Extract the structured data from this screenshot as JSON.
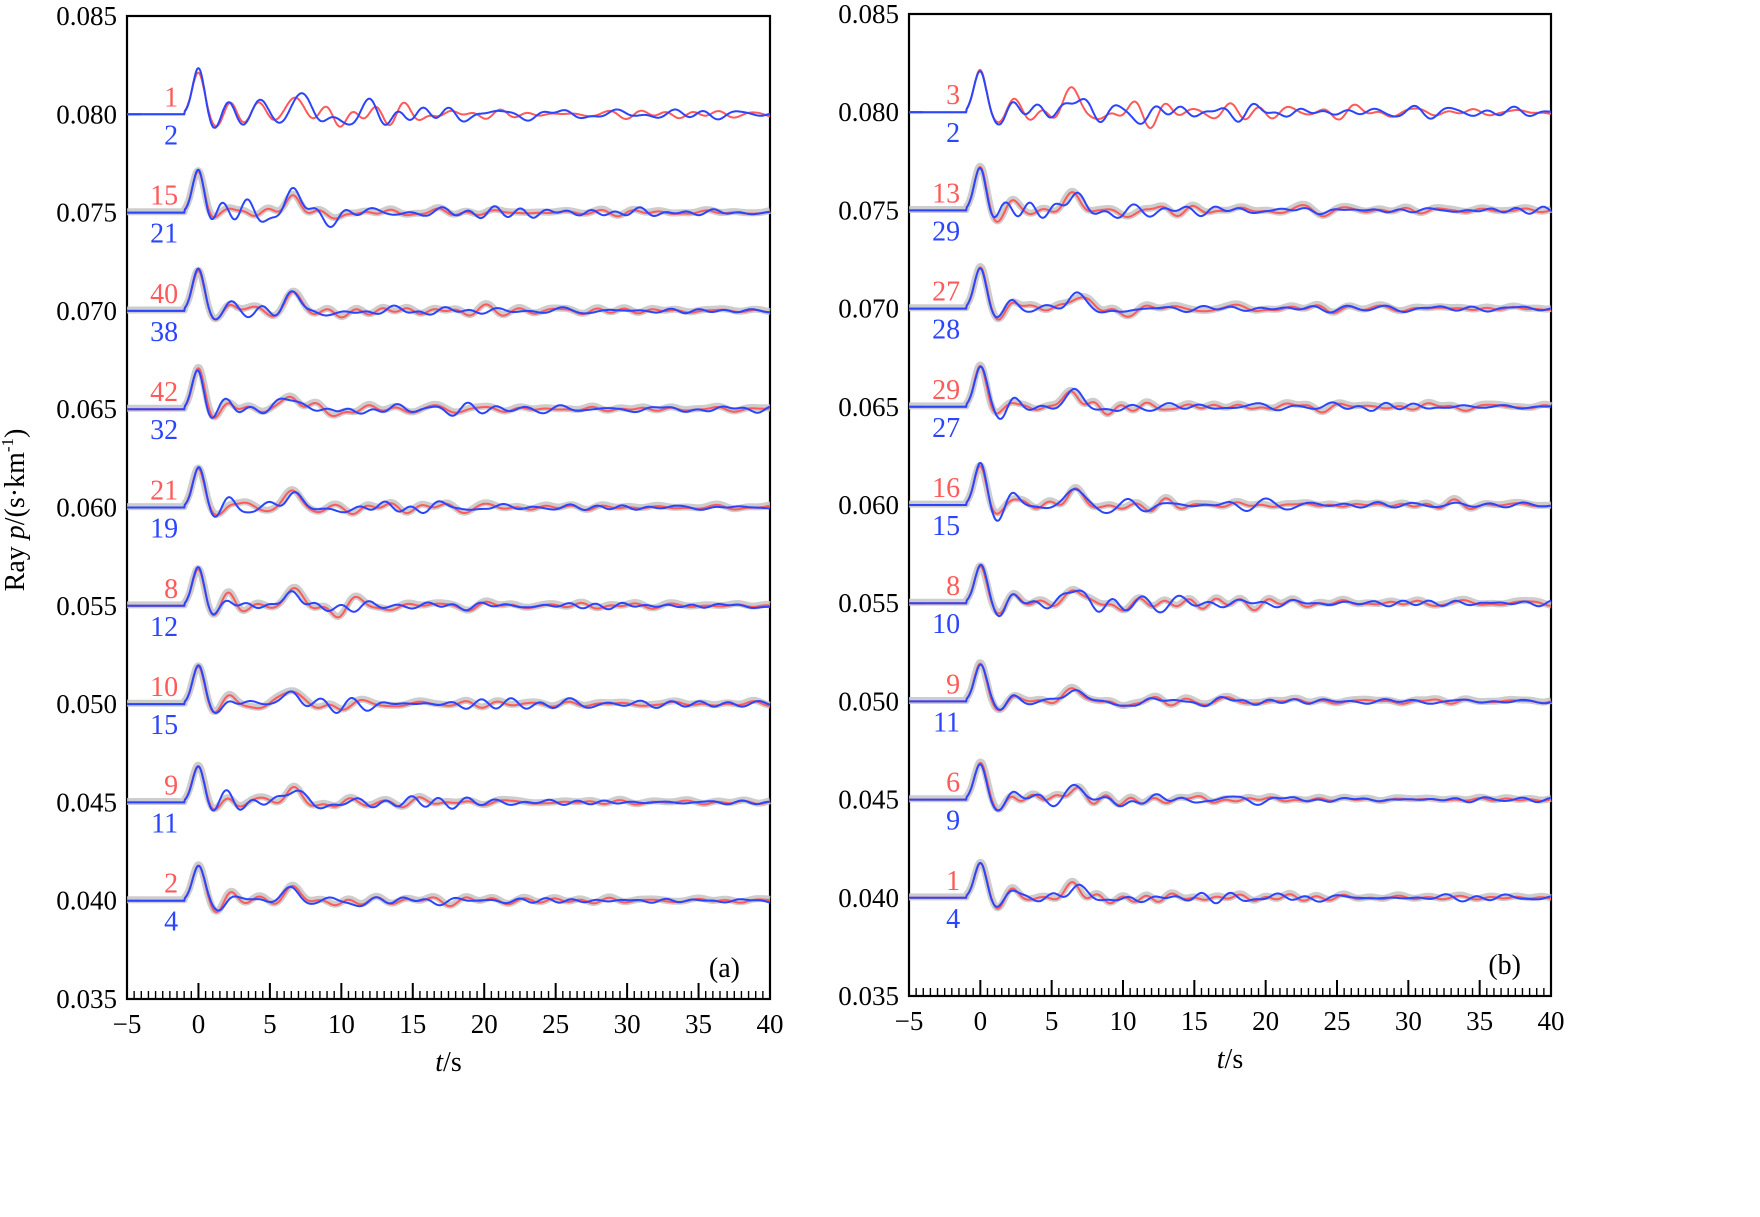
{
  "ylabel": "Ray p/(s·km⁻¹)",
  "ylabel_parts": {
    "prefix": "Ray ",
    "var": "p",
    "unit_pre": "/(s·km",
    "unit_sup": "-1",
    "unit_post": ")"
  },
  "colors": {
    "red": "#ff5a5a",
    "blue": "#2b45ff",
    "gray": "#c4c4c4",
    "axis": "#000000"
  },
  "chart_data": [
    {
      "type": "line",
      "panel_label": "(a)",
      "xlabel": "t/s",
      "xlim": [
        -5,
        40
      ],
      "ylim": [
        0.035,
        0.085
      ],
      "x_ticks": [
        "-5",
        "0",
        "5",
        "10",
        "15",
        "20",
        "25",
        "30",
        "35",
        "40"
      ],
      "y_ticks": [
        "0.035",
        "0.040",
        "0.045",
        "0.050",
        "0.055",
        "0.060",
        "0.065",
        "0.070",
        "0.075",
        "0.080",
        "0.085"
      ],
      "series_description": "Red and blue traces stacked by ray parameter p; red and blue numbers beside each trace",
      "traces": [
        {
          "p": 0.08,
          "red_count": "1",
          "blue_count": "2"
        },
        {
          "p": 0.075,
          "red_count": "15",
          "blue_count": "21"
        },
        {
          "p": 0.07,
          "red_count": "40",
          "blue_count": "38"
        },
        {
          "p": 0.065,
          "red_count": "42",
          "blue_count": "32"
        },
        {
          "p": 0.06,
          "red_count": "21",
          "blue_count": "19"
        },
        {
          "p": 0.055,
          "red_count": "8",
          "blue_count": "12"
        },
        {
          "p": 0.05,
          "red_count": "10",
          "blue_count": "15"
        },
        {
          "p": 0.045,
          "red_count": "9",
          "blue_count": "11"
        },
        {
          "p": 0.04,
          "red_count": "2",
          "blue_count": "4"
        }
      ]
    },
    {
      "type": "line",
      "panel_label": "(b)",
      "xlabel": "t/s",
      "xlim": [
        -5,
        40
      ],
      "ylim": [
        0.035,
        0.085
      ],
      "x_ticks": [
        "-5",
        "0",
        "5",
        "10",
        "15",
        "20",
        "25",
        "30",
        "35",
        "40"
      ],
      "y_ticks": [
        "0.035",
        "0.040",
        "0.045",
        "0.050",
        "0.055",
        "0.060",
        "0.065",
        "0.070",
        "0.075",
        "0.080",
        "0.085"
      ],
      "traces": [
        {
          "p": 0.08,
          "red_count": "3",
          "blue_count": "2"
        },
        {
          "p": 0.075,
          "red_count": "13",
          "blue_count": "29"
        },
        {
          "p": 0.07,
          "red_count": "27",
          "blue_count": "28"
        },
        {
          "p": 0.065,
          "red_count": "29",
          "blue_count": "27"
        },
        {
          "p": 0.06,
          "red_count": "16",
          "blue_count": "15"
        },
        {
          "p": 0.055,
          "red_count": "8",
          "blue_count": "10"
        },
        {
          "p": 0.05,
          "red_count": "9",
          "blue_count": "11"
        },
        {
          "p": 0.045,
          "red_count": "6",
          "blue_count": "9"
        },
        {
          "p": 0.04,
          "red_count": "1",
          "blue_count": "4"
        }
      ]
    }
  ]
}
